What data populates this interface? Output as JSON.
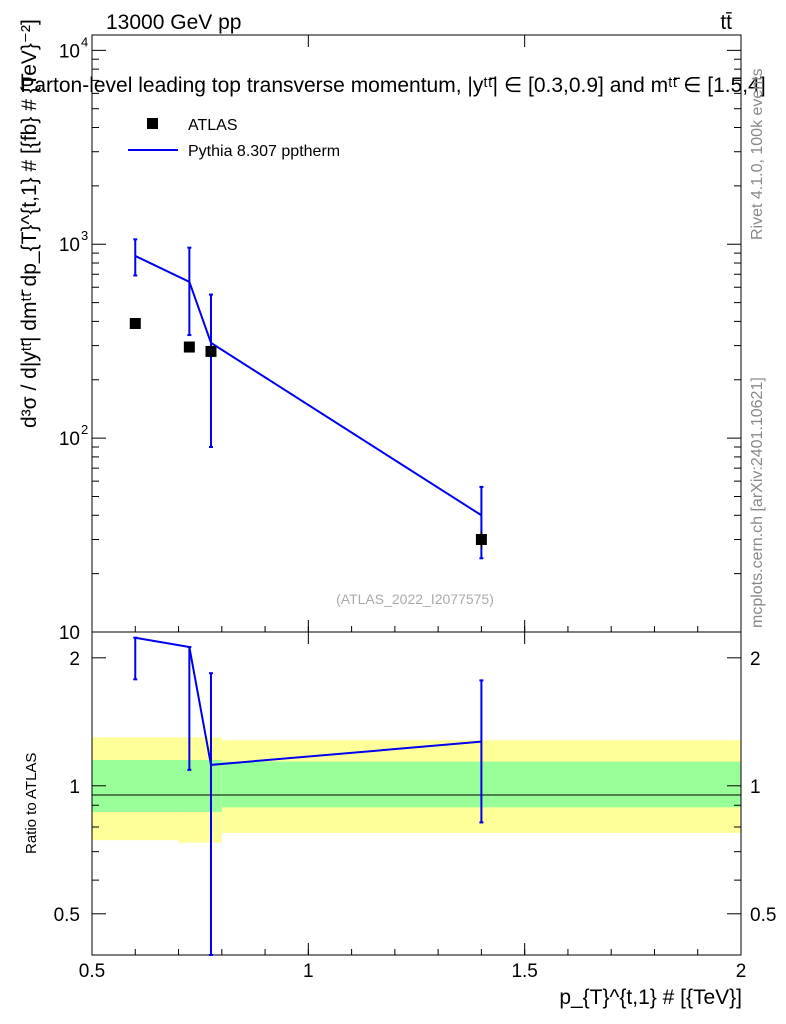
{
  "header": {
    "energy": "13000 GeV pp",
    "process": "tt̄",
    "title": "Parton-level leading top transverse momentum, |yᵗᵗ̄| ∈ [0.3,0.9] and mᵗᵗ̄ ∈ [1.5,4]"
  },
  "side_text": {
    "rivet": "Rivet 4.1.0,  100k events",
    "mcplots": "mcplots.cern.ch [arXiv:2401.10621]"
  },
  "watermark": "(ATLAS_2022_I2077575)",
  "legend": {
    "data_label": "ATLAS",
    "mc_label": "Pythia 8.307 pptherm"
  },
  "colors": {
    "data": "#000000",
    "mc": "#0000ee",
    "band_inner": "#99ff99",
    "band_outer": "#ffff99"
  },
  "chart_data": {
    "type": "line",
    "xlabel": "p_{T}^{t,1} # [{TeV}]",
    "ylabel": "d³σ / d|yᵗᵗ̄| dmᵗᵗ̄ dp_{T}^{t,1} # [{fb} # {TeV}⁻²]",
    "ratio_ylabel": "Ratio to ATLAS",
    "xlim": [
      0.5,
      2.0
    ],
    "ylim": [
      10,
      12000
    ],
    "yscale": "log",
    "ratio_ylim": [
      0.4,
      2.3
    ],
    "x_ticks": [
      0.5,
      1,
      1.5,
      2
    ],
    "x_tick_labels": [
      "0.5",
      "1",
      "1.5",
      "2"
    ],
    "y_ticks_main": [
      {
        "value": 10,
        "label": "10",
        "sup": ""
      },
      {
        "value": 100,
        "label": "10",
        "sup": "2"
      },
      {
        "value": 1000,
        "label": "10",
        "sup": "3"
      },
      {
        "value": 10000,
        "label": "10",
        "sup": "4"
      }
    ],
    "y_ticks_ratio": [
      {
        "value": 0.5,
        "label": "0.5"
      },
      {
        "value": 1,
        "label": "1"
      },
      {
        "value": 2,
        "label": "2"
      }
    ],
    "series": [
      {
        "name": "ATLAS",
        "kind": "data",
        "x": [
          0.6,
          0.725,
          0.775,
          1.4
        ],
        "y": [
          390,
          295,
          280,
          30
        ],
        "err": [
          0,
          0,
          0,
          3
        ]
      },
      {
        "name": "Pythia 8.307 pptherm",
        "kind": "mc",
        "x": [
          0.6,
          0.725,
          0.775,
          1.4
        ],
        "y": [
          870,
          640,
          310,
          40
        ],
        "err_lo": [
          180,
          300,
          220,
          16
        ],
        "err_hi": [
          190,
          320,
          240,
          16
        ]
      }
    ],
    "ratio": {
      "x": [
        0.6,
        0.725,
        0.775,
        1.4
      ],
      "y": [
        2.23,
        2.12,
        1.12,
        1.27
      ],
      "err_lo": [
        0.45,
        1.03,
        0.95,
        0.45
      ],
      "err_hi": [
        0.0,
        0.0,
        0.72,
        0.5
      ]
    },
    "bands": [
      {
        "x0": 0.5,
        "x1": 0.7,
        "inner_lo": 0.868,
        "inner_hi": 1.15,
        "outer_lo": 0.745,
        "outer_hi": 1.3
      },
      {
        "x0": 0.7,
        "x1": 0.8,
        "inner_lo": 0.868,
        "inner_hi": 1.15,
        "outer_lo": 0.735,
        "outer_hi": 1.3
      },
      {
        "x0": 0.8,
        "x1": 2.0,
        "inner_lo": 0.89,
        "inner_hi": 1.14,
        "outer_lo": 0.775,
        "outer_hi": 1.28
      }
    ]
  }
}
